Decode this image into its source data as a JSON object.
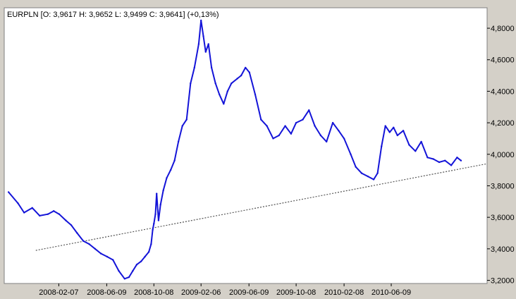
{
  "header": {
    "ohlc_label": "EURPLN [O: 3,9617  H: 3,9652  L: 3,9499  C: 3,9641] (+0,13%)"
  },
  "colors": {
    "price": "#1414d8",
    "trendline": "#555555",
    "plot_background": "#ffffff",
    "frame": "#808080",
    "window": "#d4d0c8"
  },
  "chart_data": {
    "type": "line",
    "instrument": "EURPLN",
    "ohlc": {
      "open": 3.9617,
      "high": 3.9652,
      "low": 3.9499,
      "close": 3.9641,
      "change_pct": 0.13
    },
    "y_axis": {
      "ticks": [
        3.2,
        3.4,
        3.6,
        3.8,
        4.0,
        4.2,
        4.4,
        4.6,
        4.8
      ],
      "tick_labels": [
        "3,2000",
        "3,4000",
        "3,6000",
        "3,8000",
        "4,0000",
        "4,2000",
        "4,4000",
        "4,6000",
        "4,8000"
      ],
      "range": [
        3.18,
        4.93
      ],
      "position": "right"
    },
    "x_axis": {
      "tick_labels": [
        "2008-02-07",
        "2008-06-09",
        "2008-10-08",
        "2009-02-06",
        "2009-06-09",
        "2009-10-08",
        "2010-02-08",
        "2010-06-09"
      ],
      "range": [
        "2007-09-20",
        "2011-02-10"
      ]
    },
    "grid": false,
    "legend": "none",
    "series": [
      {
        "x": [
          "2007-10-01",
          "2007-10-25",
          "2007-11-10",
          "2007-12-01",
          "2007-12-20",
          "2008-01-10",
          "2008-01-25",
          "2008-02-08",
          "2008-02-25",
          "2008-03-10",
          "2008-03-25",
          "2008-04-10",
          "2008-04-25",
          "2008-05-10",
          "2008-05-25",
          "2008-06-10",
          "2008-06-25",
          "2008-07-10",
          "2008-07-25",
          "2008-08-05",
          "2008-08-15",
          "2008-08-25",
          "2008-09-05",
          "2008-09-15",
          "2008-09-25",
          "2008-10-01",
          "2008-10-05",
          "2008-10-08",
          "2008-10-12",
          "2008-10-15",
          "2008-10-20",
          "2008-10-25",
          "2008-11-01",
          "2008-11-10",
          "2008-11-20",
          "2008-11-30",
          "2008-12-10",
          "2008-12-20",
          "2008-12-31",
          "2009-01-10",
          "2009-01-20",
          "2009-01-31",
          "2009-02-06",
          "2009-02-12",
          "2009-02-18",
          "2009-02-25",
          "2009-03-05",
          "2009-03-15",
          "2009-03-25",
          "2009-04-05",
          "2009-04-15",
          "2009-04-25",
          "2009-05-10",
          "2009-05-20",
          "2009-05-31",
          "2009-06-10",
          "2009-06-25",
          "2009-07-10",
          "2009-07-25",
          "2009-08-10",
          "2009-08-25",
          "2009-09-10",
          "2009-09-25",
          "2009-10-08",
          "2009-10-25",
          "2009-11-10",
          "2009-11-25",
          "2009-12-10",
          "2009-12-25",
          "2010-01-10",
          "2010-01-25",
          "2010-02-08",
          "2010-02-25",
          "2010-03-10",
          "2010-03-25",
          "2010-04-10",
          "2010-04-25",
          "2010-05-05",
          "2010-05-15",
          "2010-05-25",
          "2010-06-05",
          "2010-06-15",
          "2010-06-25",
          "2010-07-10",
          "2010-07-25",
          "2010-08-10",
          "2010-08-25",
          "2010-09-10",
          "2010-09-25",
          "2010-10-10",
          "2010-10-25",
          "2010-11-10",
          "2010-11-25",
          "2010-12-05"
        ],
        "values": [
          3.76,
          3.69,
          3.63,
          3.66,
          3.61,
          3.62,
          3.64,
          3.62,
          3.58,
          3.55,
          3.5,
          3.45,
          3.43,
          3.4,
          3.37,
          3.35,
          3.33,
          3.26,
          3.21,
          3.22,
          3.26,
          3.3,
          3.32,
          3.35,
          3.38,
          3.43,
          3.52,
          3.56,
          3.62,
          3.75,
          3.58,
          3.68,
          3.77,
          3.85,
          3.9,
          3.96,
          4.08,
          4.18,
          4.22,
          4.45,
          4.55,
          4.7,
          4.85,
          4.75,
          4.65,
          4.7,
          4.55,
          4.45,
          4.38,
          4.32,
          4.4,
          4.45,
          4.48,
          4.5,
          4.55,
          4.52,
          4.38,
          4.22,
          4.18,
          4.1,
          4.12,
          4.18,
          4.13,
          4.2,
          4.22,
          4.28,
          4.18,
          4.12,
          4.08,
          4.2,
          4.15,
          4.1,
          4.0,
          3.92,
          3.88,
          3.86,
          3.84,
          3.88,
          4.05,
          4.18,
          4.14,
          4.17,
          4.12,
          4.15,
          4.06,
          4.02,
          4.08,
          3.98,
          3.97,
          3.95,
          3.96,
          3.93,
          3.98,
          3.96
        ]
      },
      {
        "type": "trendline",
        "x": [
          "2007-12-10",
          "2011-02-10"
        ],
        "values": [
          3.39,
          3.94
        ]
      }
    ]
  }
}
